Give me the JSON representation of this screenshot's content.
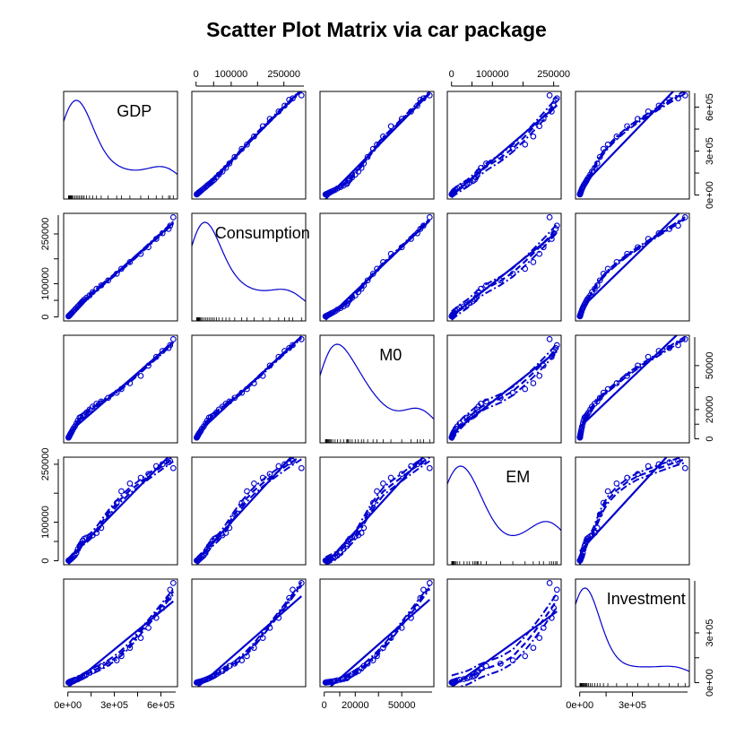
{
  "chart_data": {
    "type": "scatter",
    "title": "Scatter Plot Matrix via car package",
    "variables": [
      "GDP",
      "Consumption",
      "M0",
      "EM",
      "Investment"
    ],
    "colors": {
      "points": "#0000CD",
      "frame": "#000000"
    },
    "layout": {
      "diagonal": "density with rug",
      "smoother": "lowess",
      "regression_line": "solid",
      "spread_lines": "dashed / dash-dot"
    },
    "axis_ticks": {
      "GDP": [
        "0e+00",
        "3e+05",
        "6e+05"
      ],
      "Consumption": [
        "0",
        "100000",
        "250000"
      ],
      "M0": [
        "0",
        "20000",
        "50000"
      ],
      "EM": [
        "0",
        "100000",
        "250000"
      ],
      "Investment": [
        "0e+00",
        "3e+05"
      ]
    },
    "axis_ticks_alt": {
      "GDP": [
        "0e+00",
        "3e+05",
        "6e+05"
      ],
      "Consumption": [
        "0",
        "100000",
        "250000"
      ],
      "M0": [
        "0",
        "20000",
        "50000"
      ],
      "EM": [
        "0",
        "100000",
        "250000"
      ],
      "Investment": [
        "0e+00",
        "3e+05"
      ]
    },
    "observations": [
      {
        "GDP": 4000,
        "Consumption": 1800,
        "M0": 800,
        "EM": 500,
        "Investment": 1000
      },
      {
        "GDP": 5000,
        "Consumption": 2300,
        "M0": 1000,
        "EM": 700,
        "Investment": 1300
      },
      {
        "GDP": 6000,
        "Consumption": 2800,
        "M0": 1200,
        "EM": 900,
        "Investment": 1600
      },
      {
        "GDP": 7500,
        "Consumption": 3500,
        "M0": 1500,
        "EM": 1200,
        "Investment": 2000
      },
      {
        "GDP": 9000,
        "Consumption": 4200,
        "M0": 1800,
        "EM": 1500,
        "Investment": 2500
      },
      {
        "GDP": 11000,
        "Consumption": 5000,
        "M0": 2200,
        "EM": 2000,
        "Investment": 3000
      },
      {
        "GDP": 13000,
        "Consumption": 6000,
        "M0": 2700,
        "EM": 2500,
        "Investment": 3600
      },
      {
        "GDP": 16000,
        "Consumption": 7500,
        "M0": 3200,
        "EM": 3300,
        "Investment": 4400
      },
      {
        "GDP": 19000,
        "Consumption": 9000,
        "M0": 3800,
        "EM": 4200,
        "Investment": 5200
      },
      {
        "GDP": 23000,
        "Consumption": 11000,
        "M0": 4500,
        "EM": 5500,
        "Investment": 6500
      },
      {
        "GDP": 28000,
        "Consumption": 13500,
        "M0": 5500,
        "EM": 7500,
        "Investment": 8000
      },
      {
        "GDP": 35000,
        "Consumption": 17000,
        "M0": 7000,
        "EM": 10000,
        "Investment": 10500
      },
      {
        "GDP": 45000,
        "Consumption": 22000,
        "M0": 8500,
        "EM": 14000,
        "Investment": 14000
      },
      {
        "GDP": 55000,
        "Consumption": 27000,
        "M0": 10500,
        "EM": 20000,
        "Investment": 18000
      },
      {
        "GDP": 65000,
        "Consumption": 32000,
        "M0": 12500,
        "EM": 30000,
        "Investment": 22000
      },
      {
        "GDP": 75000,
        "Consumption": 37000,
        "M0": 14500,
        "EM": 38000,
        "Investment": 27000
      },
      {
        "GDP": 85000,
        "Consumption": 42000,
        "M0": 15000,
        "EM": 44000,
        "Investment": 32000
      },
      {
        "GDP": 95000,
        "Consumption": 47000,
        "M0": 15500,
        "EM": 52000,
        "Investment": 37000
      },
      {
        "GDP": 105000,
        "Consumption": 52000,
        "M0": 16500,
        "EM": 57000,
        "Investment": 42000
      },
      {
        "GDP": 120000,
        "Consumption": 58000,
        "M0": 18000,
        "EM": 60000,
        "Investment": 50000
      },
      {
        "GDP": 140000,
        "Consumption": 65000,
        "M0": 20000,
        "EM": 63000,
        "Investment": 60000
      },
      {
        "GDP": 160000,
        "Consumption": 75000,
        "M0": 22000,
        "EM": 66000,
        "Investment": 70000
      },
      {
        "GDP": 185000,
        "Consumption": 85000,
        "M0": 24000,
        "EM": 72000,
        "Investment": 85000
      },
      {
        "GDP": 215000,
        "Consumption": 95000,
        "M0": 25500,
        "EM": 85000,
        "Investment": 100000
      },
      {
        "GDP": 260000,
        "Consumption": 110000,
        "M0": 28000,
        "EM": 120000,
        "Investment": 115000
      },
      {
        "GDP": 315000,
        "Consumption": 130000,
        "M0": 31500,
        "EM": 150000,
        "Investment": 135000
      },
      {
        "GDP": 345000,
        "Consumption": 145000,
        "M0": 34000,
        "EM": 180000,
        "Investment": 160000
      },
      {
        "GDP": 400000,
        "Consumption": 165000,
        "M0": 38000,
        "EM": 200000,
        "Investment": 210000
      },
      {
        "GDP": 470000,
        "Consumption": 190000,
        "M0": 43000,
        "EM": 215000,
        "Investment": 270000
      },
      {
        "GDP": 520000,
        "Consumption": 210000,
        "M0": 50000,
        "EM": 225000,
        "Investment": 330000
      },
      {
        "GDP": 570000,
        "Consumption": 235000,
        "M0": 56000,
        "EM": 245000,
        "Investment": 390000
      },
      {
        "GDP": 610000,
        "Consumption": 252000,
        "M0": 60000,
        "EM": 250000,
        "Investment": 450000
      },
      {
        "GDP": 650000,
        "Consumption": 265000,
        "M0": 62000,
        "EM": 255000,
        "Investment": 510000
      },
      {
        "GDP": 660000,
        "Consumption": 275000,
        "M0": 64000,
        "EM": 258000,
        "Investment": 560000
      },
      {
        "GDP": 680000,
        "Consumption": 300000,
        "M0": 68000,
        "EM": 240000,
        "Investment": 600000
      }
    ]
  }
}
